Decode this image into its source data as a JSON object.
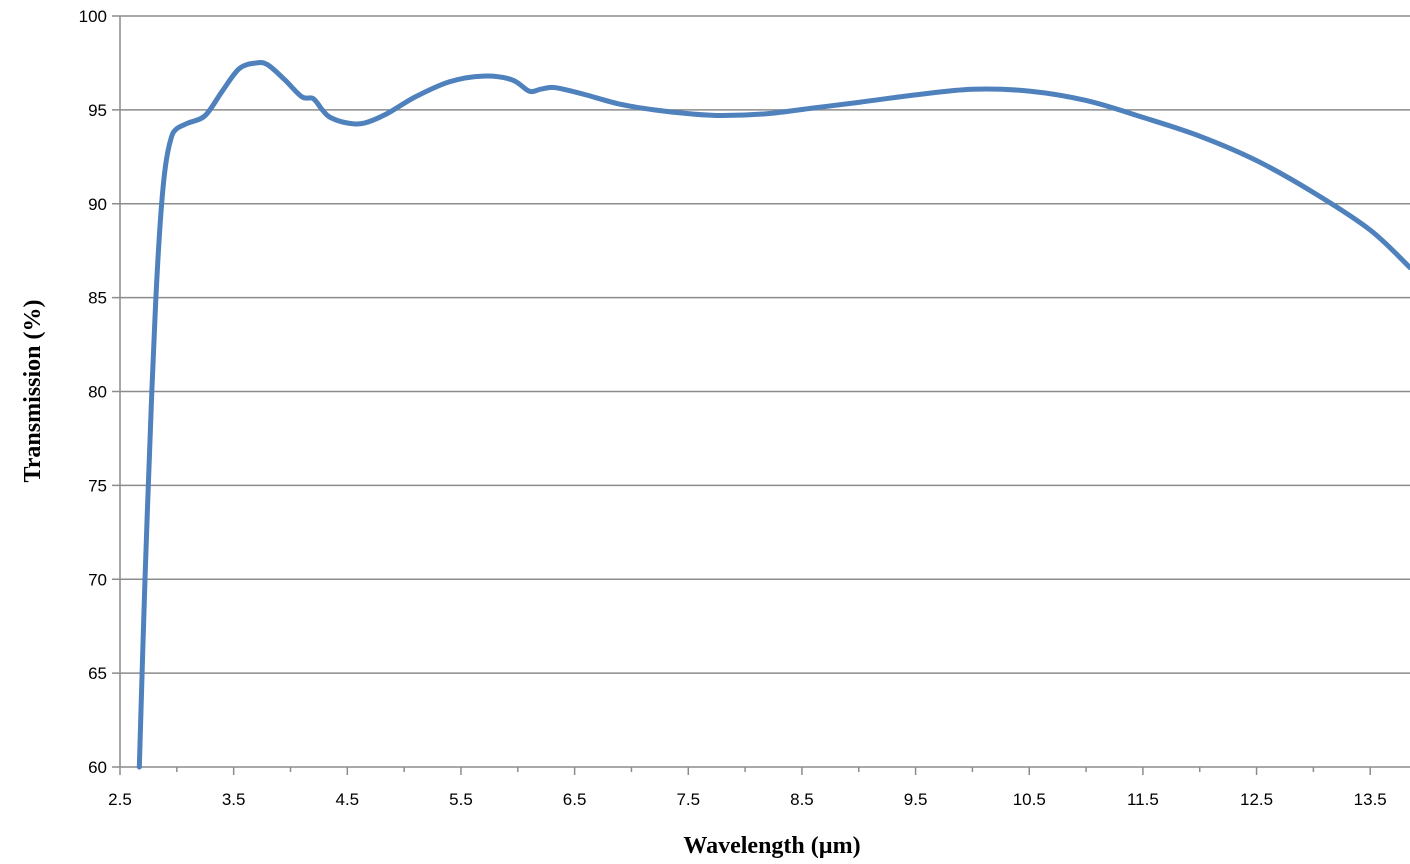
{
  "chart_data": {
    "type": "line",
    "title": "",
    "xlabel": "Wavelength (µm)",
    "ylabel": "Transmission (%)",
    "xlim": [
      2.5,
      13.85
    ],
    "ylim": [
      60,
      100
    ],
    "x_tick_labels": [
      "2.5",
      "3.5",
      "4.5",
      "5.5",
      "6.5",
      "7.5",
      "8.5",
      "9.5",
      "10.5",
      "11.5",
      "12.5",
      "13.5"
    ],
    "x_tick_values": [
      2.5,
      3.5,
      4.5,
      5.5,
      6.5,
      7.5,
      8.5,
      9.5,
      10.5,
      11.5,
      12.5,
      13.5
    ],
    "x_minor_ticks": [
      3.0,
      4.0,
      5.0,
      6.0,
      7.0,
      8.0,
      9.0,
      10.0,
      11.0,
      12.0,
      13.0
    ],
    "y_tick_labels": [
      "60",
      "65",
      "70",
      "75",
      "80",
      "85",
      "90",
      "95",
      "100"
    ],
    "y_tick_values": [
      60,
      65,
      70,
      75,
      80,
      85,
      90,
      95,
      100
    ],
    "grid": {
      "horizontal": true,
      "vertical": false
    },
    "legend": "none",
    "series": [
      {
        "color": "#4f81bd",
        "x": [
          2.67,
          2.72,
          2.78,
          2.82,
          2.86,
          2.9,
          2.95,
          3.0,
          3.1,
          3.25,
          3.4,
          3.55,
          3.7,
          3.8,
          3.95,
          4.1,
          4.2,
          4.28,
          4.35,
          4.5,
          4.65,
          4.85,
          5.1,
          5.4,
          5.7,
          5.95,
          6.1,
          6.2,
          6.3,
          6.4,
          6.6,
          6.9,
          7.2,
          7.5,
          7.8,
          8.2,
          8.6,
          9.0,
          9.5,
          10.0,
          10.5,
          11.0,
          11.5,
          12.0,
          12.5,
          13.0,
          13.5,
          13.85
        ],
        "y": [
          60.0,
          70.0,
          80.0,
          85.5,
          89.5,
          92.0,
          93.5,
          94.0,
          94.3,
          94.7,
          96.0,
          97.2,
          97.5,
          97.4,
          96.6,
          95.7,
          95.6,
          95.0,
          94.6,
          94.3,
          94.3,
          94.8,
          95.7,
          96.5,
          96.8,
          96.6,
          96.0,
          96.1,
          96.2,
          96.1,
          95.8,
          95.3,
          95.0,
          94.8,
          94.7,
          94.8,
          95.1,
          95.4,
          95.8,
          96.1,
          96.0,
          95.5,
          94.6,
          93.6,
          92.3,
          90.6,
          88.6,
          86.6
        ]
      }
    ]
  }
}
